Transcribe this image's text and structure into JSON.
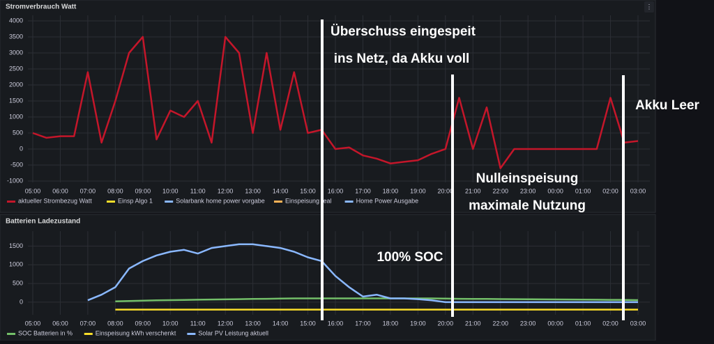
{
  "chart_data": [
    {
      "type": "line",
      "title": "Stromverbrauch Watt",
      "categories": [
        "05:00",
        null,
        "06:00",
        null,
        "07:00",
        null,
        "08:00",
        null,
        "09:00",
        null,
        "10:00",
        null,
        "11:00",
        null,
        "12:00",
        null,
        "13:00",
        null,
        "14:00",
        null,
        "15:00",
        null,
        "16:00",
        null,
        "17:00",
        null,
        "18:00",
        null,
        "19:00",
        null,
        "20:00",
        null,
        "21:00",
        null,
        "22:00",
        null,
        "23:00",
        null,
        "00:00",
        null,
        "01:00",
        null,
        "02:00",
        null,
        "03:00"
      ],
      "series": [
        {
          "name": "aktueller Strombezug Watt",
          "color": "#c4162a",
          "values": [
            500,
            350,
            400,
            400,
            2400,
            200,
            1500,
            3000,
            3500,
            300,
            1200,
            1000,
            1500,
            200,
            3500,
            3000,
            500,
            3000,
            600,
            2400,
            500,
            600,
            0,
            50,
            -200,
            -300,
            -450,
            -400,
            -350,
            -150,
            0,
            1600,
            0,
            1300,
            -600,
            0,
            0,
            0,
            0,
            0,
            0,
            0,
            1600,
            200,
            250
          ]
        },
        {
          "name": "Einsp Algo 1",
          "color": "#fade2a"
        },
        {
          "name": "Solarbank home power vorgabe",
          "color": "#8ab8ff"
        },
        {
          "name": "Einspeisung real",
          "color": "#ffb357"
        },
        {
          "name": "Home Power Ausgabe",
          "color": "#8ab8ff"
        }
      ],
      "ylim": [
        -1000,
        4000
      ],
      "yticks": [
        -1000,
        -500,
        0,
        500,
        1000,
        1500,
        2000,
        2500,
        3000,
        3500,
        4000
      ],
      "grid": true
    },
    {
      "type": "line",
      "title": "Batterien Ladezustand",
      "categories": [
        "05:00",
        null,
        "06:00",
        null,
        "07:00",
        null,
        "08:00",
        null,
        "09:00",
        null,
        "10:00",
        null,
        "11:00",
        null,
        "12:00",
        null,
        "13:00",
        null,
        "14:00",
        null,
        "15:00",
        null,
        "16:00",
        null,
        "17:00",
        null,
        "18:00",
        null,
        "19:00",
        null,
        "20:00",
        null,
        "21:00",
        null,
        "22:00",
        null,
        "23:00",
        null,
        "00:00",
        null,
        "01:00",
        null,
        "02:00",
        null,
        "03:00"
      ],
      "series": [
        {
          "name": "SOC Batterien in %",
          "color": "#73bf69",
          "values": [
            null,
            null,
            null,
            null,
            null,
            null,
            20,
            30,
            40,
            50,
            55,
            60,
            65,
            70,
            75,
            80,
            85,
            90,
            95,
            100,
            100,
            100,
            100,
            100,
            100,
            100,
            100,
            100,
            100,
            100,
            95,
            90,
            88,
            85,
            82,
            80,
            78,
            75,
            72,
            70,
            68,
            65,
            62,
            60,
            55
          ]
        },
        {
          "name": "Einspeisung kWh verschenkt",
          "color": "#fade2a",
          "values": [
            null,
            null,
            null,
            null,
            null,
            null,
            -200,
            -200,
            -200,
            -200,
            -200,
            -200,
            -200,
            -200,
            -200,
            -200,
            -200,
            -200,
            -200,
            -200,
            -200,
            -200,
            -200,
            -200,
            -200,
            -200,
            -200,
            -200,
            -200,
            -200,
            -200,
            -200,
            -200,
            -200,
            -200,
            -200,
            -200,
            -200,
            -200,
            -200,
            -200,
            -200,
            -200,
            -200,
            -200
          ]
        },
        {
          "name": "Solar PV Leistung aktuell",
          "color": "#8ab8ff",
          "values": [
            null,
            null,
            null,
            null,
            50,
            200,
            400,
            900,
            1100,
            1250,
            1350,
            1400,
            1300,
            1450,
            1500,
            1550,
            1550,
            1500,
            1450,
            1350,
            1200,
            1100,
            700,
            400,
            150,
            200,
            100,
            100,
            80,
            50,
            0,
            0,
            0,
            0,
            0,
            0,
            0,
            0,
            0,
            0,
            0,
            0,
            0,
            0,
            0
          ]
        }
      ],
      "ylim": [
        -300,
        1750
      ],
      "yticks": [
        0,
        500,
        1000,
        1500
      ],
      "grid": true
    }
  ],
  "annotations": [
    "Überschuss eingespeit",
    "ins Netz, da Akku voll",
    "Akku Leer",
    "Nulleinspeisung",
    "maximale Nutzung",
    "100% SOC"
  ]
}
